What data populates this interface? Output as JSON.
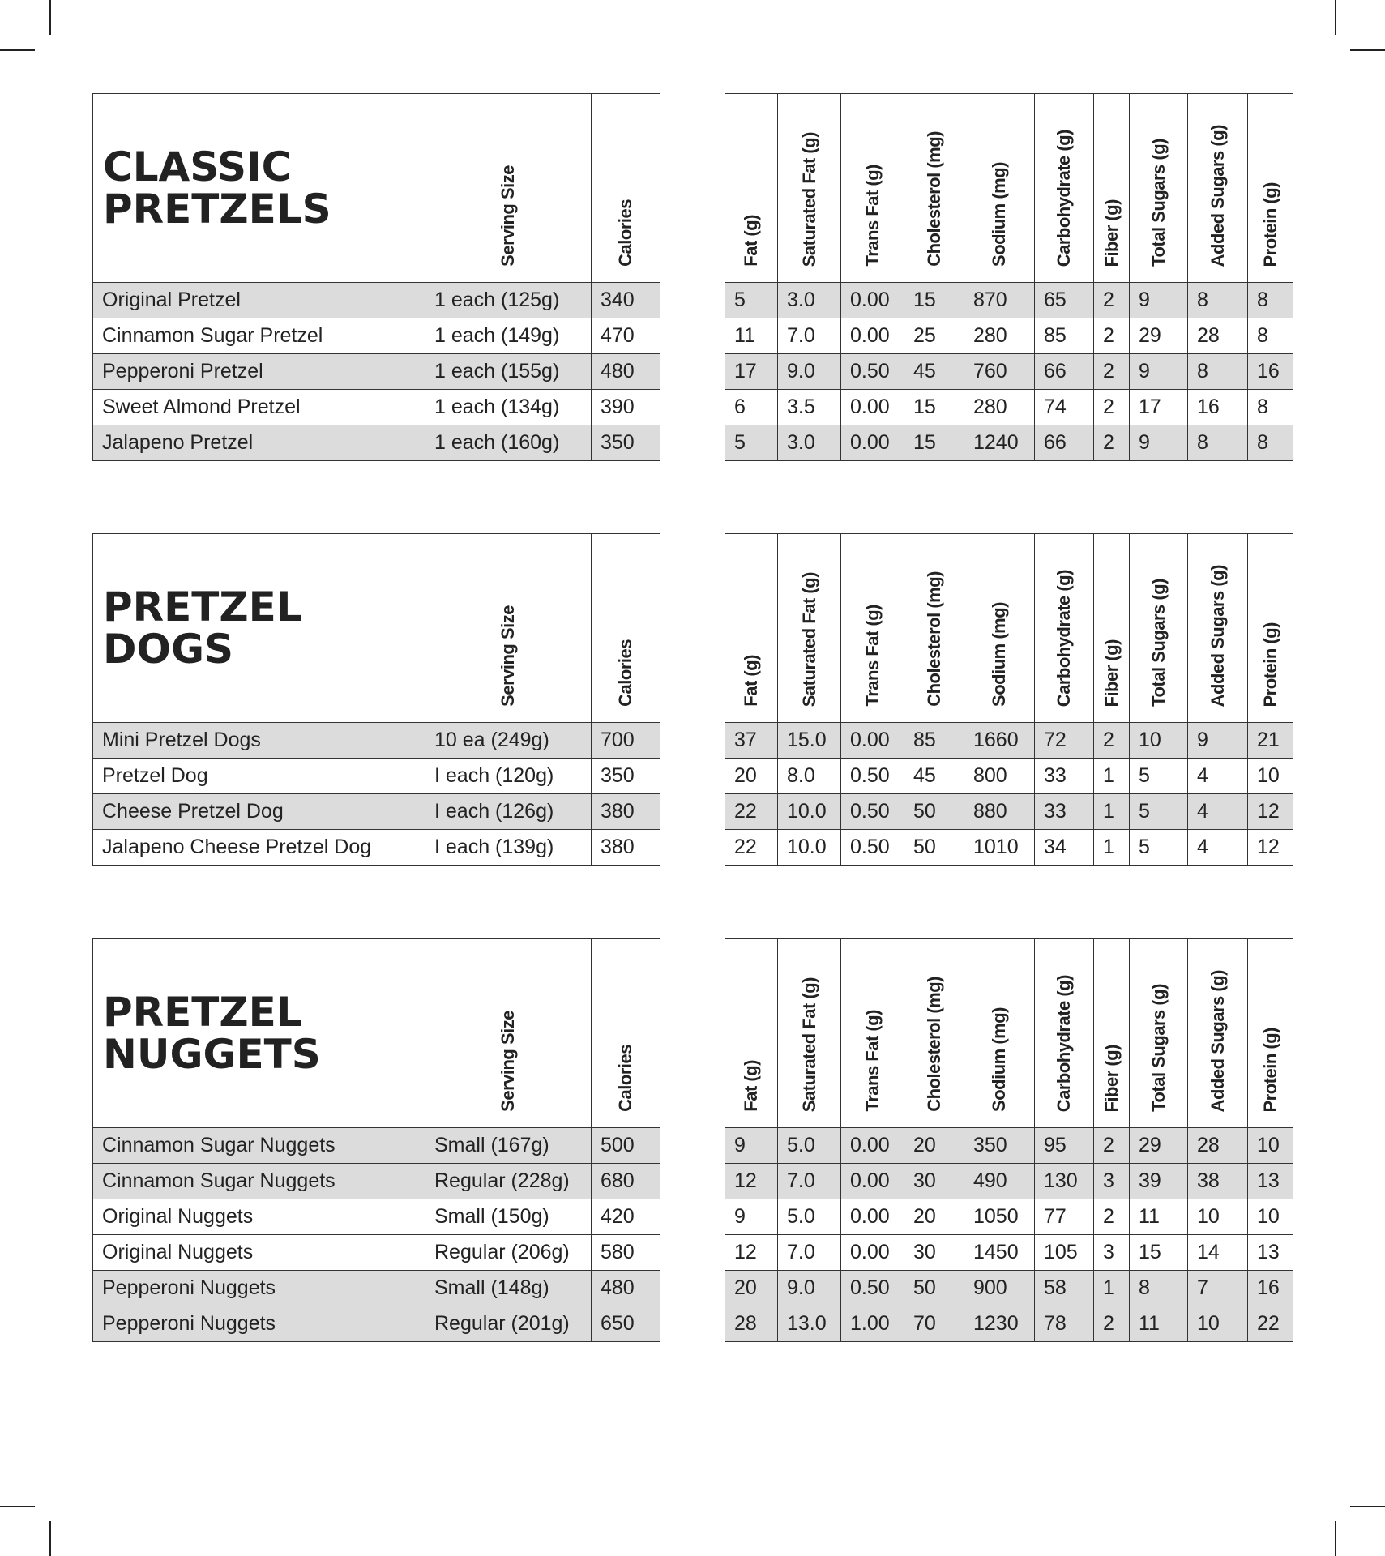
{
  "left_headers": [
    "Serving Size",
    "Calories"
  ],
  "right_headers": [
    "Fat (g)",
    "Saturated Fat (g)",
    "Trans Fat (g)",
    "Cholesterol (mg)",
    "Sodium (mg)",
    "Carbohydrate (g)",
    "Fiber (g)",
    "Total Sugars (g)",
    "Added Sugars (g)",
    "Protein (g)"
  ],
  "sections": [
    {
      "title": "CLASSIC PRETZELS",
      "shading": [
        true,
        false,
        true,
        false,
        true
      ],
      "rows": [
        {
          "name": "Original Pretzel",
          "serving": "1 each (125g)",
          "calories": "340",
          "nutrients": [
            "5",
            "3.0",
            "0.00",
            "15",
            "870",
            "65",
            "2",
            "9",
            "8",
            "8"
          ]
        },
        {
          "name": "Cinnamon Sugar Pretzel",
          "serving": "1 each (149g)",
          "calories": "470",
          "nutrients": [
            "11",
            "7.0",
            "0.00",
            "25",
            "280",
            "85",
            "2",
            "29",
            "28",
            "8"
          ]
        },
        {
          "name": "Pepperoni Pretzel",
          "serving": "1 each (155g)",
          "calories": "480",
          "nutrients": [
            "17",
            "9.0",
            "0.50",
            "45",
            "760",
            "66",
            "2",
            "9",
            "8",
            "16"
          ]
        },
        {
          "name": "Sweet Almond Pretzel",
          "serving": "1 each (134g)",
          "calories": "390",
          "nutrients": [
            "6",
            "3.5",
            "0.00",
            "15",
            "280",
            "74",
            "2",
            "17",
            "16",
            "8"
          ]
        },
        {
          "name": "Jalapeno Pretzel",
          "serving": "1 each (160g)",
          "calories": "350",
          "nutrients": [
            "5",
            "3.0",
            "0.00",
            "15",
            "1240",
            "66",
            "2",
            "9",
            "8",
            "8"
          ]
        }
      ]
    },
    {
      "title": "PRETZEL DOGS",
      "shading": [
        true,
        false,
        true,
        false
      ],
      "rows": [
        {
          "name": "Mini Pretzel Dogs",
          "serving": "10 ea (249g)",
          "calories": "700",
          "nutrients": [
            "37",
            "15.0",
            "0.00",
            "85",
            "1660",
            "72",
            "2",
            "10",
            "9",
            "21"
          ]
        },
        {
          "name": "Pretzel Dog",
          "serving": "I each (120g)",
          "calories": "350",
          "nutrients": [
            "20",
            "8.0",
            "0.50",
            "45",
            "800",
            "33",
            "1",
            "5",
            "4",
            "10"
          ]
        },
        {
          "name": "Cheese Pretzel Dog",
          "serving": "I each (126g)",
          "calories": "380",
          "nutrients": [
            "22",
            "10.0",
            "0.50",
            "50",
            "880",
            "33",
            "1",
            "5",
            "4",
            "12"
          ]
        },
        {
          "name": "Jalapeno Cheese Pretzel Dog",
          "serving": "I each (139g)",
          "calories": "380",
          "nutrients": [
            "22",
            "10.0",
            "0.50",
            "50",
            "1010",
            "34",
            "1",
            "5",
            "4",
            "12"
          ]
        }
      ]
    },
    {
      "title": "PRETZEL NUGGETS",
      "shading": [
        true,
        true,
        false,
        false,
        true,
        true
      ],
      "rows": [
        {
          "name": "Cinnamon Sugar Nuggets",
          "serving": "Small (167g)",
          "calories": "500",
          "nutrients": [
            "9",
            "5.0",
            "0.00",
            "20",
            "350",
            "95",
            "2",
            "29",
            "28",
            "10"
          ]
        },
        {
          "name": "Cinnamon Sugar Nuggets",
          "serving": "Regular (228g)",
          "calories": "680",
          "nutrients": [
            "12",
            "7.0",
            "0.00",
            "30",
            "490",
            "130",
            "3",
            "39",
            "38",
            "13"
          ]
        },
        {
          "name": "Original Nuggets",
          "serving": "Small (150g)",
          "calories": "420",
          "nutrients": [
            "9",
            "5.0",
            "0.00",
            "20",
            "1050",
            "77",
            "2",
            "11",
            "10",
            "10"
          ]
        },
        {
          "name": "Original Nuggets",
          "serving": "Regular (206g)",
          "calories": "580",
          "nutrients": [
            "12",
            "7.0",
            "0.00",
            "30",
            "1450",
            "105",
            "3",
            "15",
            "14",
            "13"
          ]
        },
        {
          "name": "Pepperoni Nuggets",
          "serving": "Small (148g)",
          "calories": "480",
          "nutrients": [
            "20",
            "9.0",
            "0.50",
            "50",
            "900",
            "58",
            "1",
            "8",
            "7",
            "16"
          ]
        },
        {
          "name": "Pepperoni Nuggets",
          "serving": "Regular (201g)",
          "calories": "650",
          "nutrients": [
            "28",
            "13.0",
            "1.00",
            "70",
            "1230",
            "78",
            "2",
            "11",
            "10",
            "22"
          ]
        }
      ]
    }
  ],
  "colors": {
    "row_shade": "#dcdcdc",
    "border": "#333333",
    "text": "#222222"
  }
}
